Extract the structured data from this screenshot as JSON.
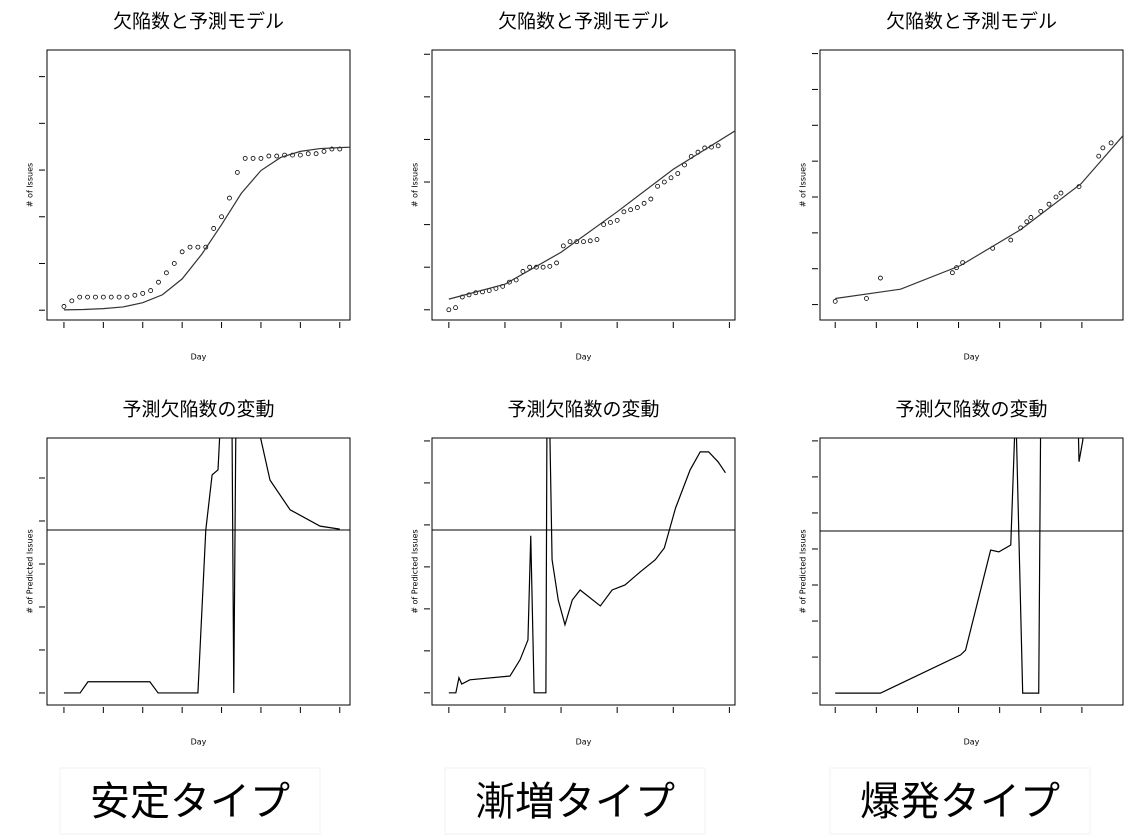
{
  "chart_data": [
    {
      "type": "scatter",
      "title": "欠陥数と予測モデル",
      "xlabel": "Day",
      "ylabel": "# of Issues",
      "xlim": [
        -0.43,
        7.26
      ],
      "ylim": [
        -0.21,
        5.57
      ],
      "xticks": [
        0,
        1,
        2,
        3,
        4,
        5,
        6,
        7
      ],
      "yticks": [
        0,
        1,
        2,
        3,
        4,
        5
      ],
      "series": [
        {
          "mode": "points",
          "color": "#000000",
          "x": [
            0,
            0.2,
            0.4,
            0.6,
            0.8,
            1.0,
            1.2,
            1.4,
            1.6,
            1.8,
            2.0,
            2.2,
            2.4,
            2.6,
            2.8,
            3.0,
            3.2,
            3.4,
            3.6,
            3.8,
            4.0,
            4.2,
            4.4,
            4.6,
            4.8,
            5.0,
            5.2,
            5.4,
            5.6,
            5.8,
            6.0,
            6.2,
            6.4,
            6.6,
            6.8,
            7.0
          ],
          "values": [
            0.08,
            0.2,
            0.28,
            0.28,
            0.28,
            0.28,
            0.28,
            0.28,
            0.28,
            0.32,
            0.36,
            0.42,
            0.6,
            0.8,
            1.0,
            1.25,
            1.35,
            1.35,
            1.35,
            1.75,
            2.0,
            2.4,
            2.95,
            3.25,
            3.25,
            3.25,
            3.3,
            3.3,
            3.32,
            3.32,
            3.32,
            3.35,
            3.35,
            3.4,
            3.45,
            3.45
          ]
        },
        {
          "mode": "line",
          "color": "#333333",
          "x": [
            0,
            0.5,
            1,
            1.5,
            2,
            2.5,
            3,
            3.5,
            4,
            4.5,
            5,
            5.5,
            6,
            6.5,
            7,
            7.26
          ],
          "values": [
            0.007,
            0.015,
            0.033,
            0.07,
            0.16,
            0.33,
            0.67,
            1.2,
            1.83,
            2.5,
            2.99,
            3.27,
            3.4,
            3.46,
            3.48,
            3.49
          ]
        }
      ]
    },
    {
      "type": "scatter",
      "title": "欠陥数と予測モデル",
      "xlabel": "Day",
      "ylabel": "# of Issues",
      "xlim": [
        -0.3,
        5.1
      ],
      "ylim": [
        -0.24,
        6.1
      ],
      "xticks": [
        0,
        1,
        2,
        3,
        4,
        5
      ],
      "yticks": [
        0,
        1,
        2,
        3,
        4,
        5,
        6
      ],
      "series": [
        {
          "mode": "points",
          "color": "#000000",
          "x": [
            0,
            0.12,
            0.24,
            0.36,
            0.48,
            0.6,
            0.72,
            0.84,
            0.96,
            1.08,
            1.2,
            1.32,
            1.44,
            1.56,
            1.68,
            1.8,
            1.92,
            2.04,
            2.16,
            2.28,
            2.4,
            2.52,
            2.64,
            2.76,
            2.88,
            3.0,
            3.12,
            3.24,
            3.36,
            3.48,
            3.6,
            3.72,
            3.84,
            3.96,
            4.08,
            4.2,
            4.32,
            4.44,
            4.56,
            4.68,
            4.8
          ],
          "values": [
            0,
            0.05,
            0.3,
            0.35,
            0.4,
            0.42,
            0.45,
            0.5,
            0.55,
            0.65,
            0.7,
            0.9,
            1.0,
            1.0,
            1.0,
            1.02,
            1.1,
            1.5,
            1.6,
            1.6,
            1.6,
            1.62,
            1.65,
            2.0,
            2.05,
            2.1,
            2.3,
            2.35,
            2.4,
            2.5,
            2.6,
            2.9,
            3.0,
            3.1,
            3.2,
            3.4,
            3.6,
            3.7,
            3.8,
            3.82,
            3.85
          ]
        },
        {
          "mode": "line",
          "color": "#333333",
          "x": [
            0,
            1,
            2,
            3,
            4,
            5.1
          ],
          "values": [
            0.25,
            0.6,
            1.35,
            2.3,
            3.3,
            4.2
          ]
        }
      ]
    },
    {
      "type": "scatter",
      "title": "欠陥数と予測モデル",
      "xlabel": "Day",
      "ylabel": "# of Issues",
      "xlim": [
        -0.37,
        7.0
      ],
      "ylim": [
        -0.43,
        7.1
      ],
      "xticks": [
        0,
        1,
        2,
        3,
        4,
        5,
        6
      ],
      "yticks": [
        0,
        1,
        2,
        3,
        4,
        5,
        6,
        7
      ],
      "series": [
        {
          "mode": "points",
          "color": "#000000",
          "x": [
            0,
            0.76,
            1.1,
            2.85,
            2.95,
            3.1,
            3.83,
            4.27,
            4.51,
            4.66,
            4.76,
            5.0,
            5.2,
            5.37,
            5.49,
            5.93,
            6.41,
            6.51,
            6.71
          ],
          "values": [
            0.09,
            0.17,
            0.74,
            0.89,
            1.03,
            1.17,
            1.57,
            1.8,
            2.14,
            2.31,
            2.43,
            2.6,
            2.8,
            3.0,
            3.11,
            3.29,
            4.14,
            4.37,
            4.51
          ]
        },
        {
          "mode": "line",
          "color": "#333333",
          "x": [
            0,
            1.59,
            3.05,
            4.51,
            5.98,
            7.0
          ],
          "values": [
            0.17,
            0.43,
            1.09,
            2.09,
            3.37,
            4.71
          ]
        }
      ]
    },
    {
      "type": "line",
      "title": "予測欠陥数の変動",
      "xlabel": "Day",
      "ylabel": "# of Predicted Issues",
      "xlim": [
        -0.43,
        7.26
      ],
      "ylim": [
        -0.28,
        5.93
      ],
      "xticks": [
        0,
        1,
        2,
        3,
        4,
        5,
        6,
        7
      ],
      "yticks": [
        0,
        1,
        2,
        3,
        4,
        5
      ],
      "hline": 3.79,
      "series": [
        {
          "color": "#000000",
          "x": [
            0,
            0.41,
            0.61,
            2.18,
            2.39,
            3.4,
            3.6,
            3.76,
            3.91,
            4.01,
            4.26,
            4.31,
            4.37,
            4.85,
            5.03,
            5.23,
            5.74,
            6.5,
            7.0
          ],
          "values": [
            0,
            0,
            0.26,
            0.26,
            0,
            0,
            3.79,
            5.07,
            5.19,
            7,
            7,
            0,
            7,
            6.5,
            5.77,
            4.95,
            4.26,
            3.88,
            3.81
          ]
        }
      ]
    },
    {
      "type": "line",
      "title": "予測欠陥数の変動",
      "xlabel": "Day",
      "ylabel": "# of Predicted Issues",
      "xlim": [
        -0.3,
        5.1
      ],
      "ylim": [
        -0.29,
        6.07
      ],
      "xticks": [
        0,
        1,
        2,
        3,
        4,
        5
      ],
      "yticks": [
        0,
        1,
        2,
        3,
        4,
        5,
        6
      ],
      "hline": 3.88,
      "series": [
        {
          "color": "#000000",
          "x": [
            0,
            0.125,
            0.18,
            0.23,
            0.375,
            1.09,
            1.27,
            1.41,
            1.46,
            1.52,
            1.73,
            1.75,
            1.79,
            1.84,
            1.95,
            2.07,
            2.2,
            2.34,
            2.7,
            2.91,
            3.14,
            3.41,
            3.68,
            3.84,
            4.04,
            4.3,
            4.48,
            4.63,
            4.8,
            4.93
          ],
          "values": [
            0,
            0,
            0.36,
            0.21,
            0.31,
            0.4,
            0.79,
            1.26,
            3.74,
            0,
            0,
            7,
            7,
            3.17,
            2.21,
            1.62,
            2.21,
            2.45,
            2.07,
            2.45,
            2.57,
            2.88,
            3.17,
            3.45,
            4.4,
            5.31,
            5.74,
            5.74,
            5.5,
            5.24
          ]
        }
      ]
    },
    {
      "type": "line",
      "title": "予測欠陥数の変動",
      "xlabel": "Day",
      "ylabel": "# of Predicted Issues",
      "xlim": [
        -0.37,
        7.0
      ],
      "ylim": [
        -0.33,
        7.08
      ],
      "xticks": [
        0,
        1,
        2,
        3,
        4,
        5,
        6
      ],
      "yticks": [
        0,
        1,
        2,
        3,
        4,
        5,
        6,
        7
      ],
      "hline": 4.5,
      "series": [
        {
          "color": "#000000",
          "x": [
            0,
            1.1,
            3.05,
            3.17,
            3.78,
            3.98,
            4.27,
            4.39,
            4.56,
            4.95,
            5.0,
            5.9,
            5.93,
            6.02,
            6.1
          ],
          "values": [
            0,
            0,
            1.06,
            1.19,
            3.97,
            3.92,
            4.11,
            8,
            0,
            0,
            8,
            8,
            6.42,
            7.0,
            8
          ]
        }
      ]
    }
  ],
  "captions": [
    "安定タイプ",
    "漸増タイプ",
    "爆発タイプ"
  ]
}
